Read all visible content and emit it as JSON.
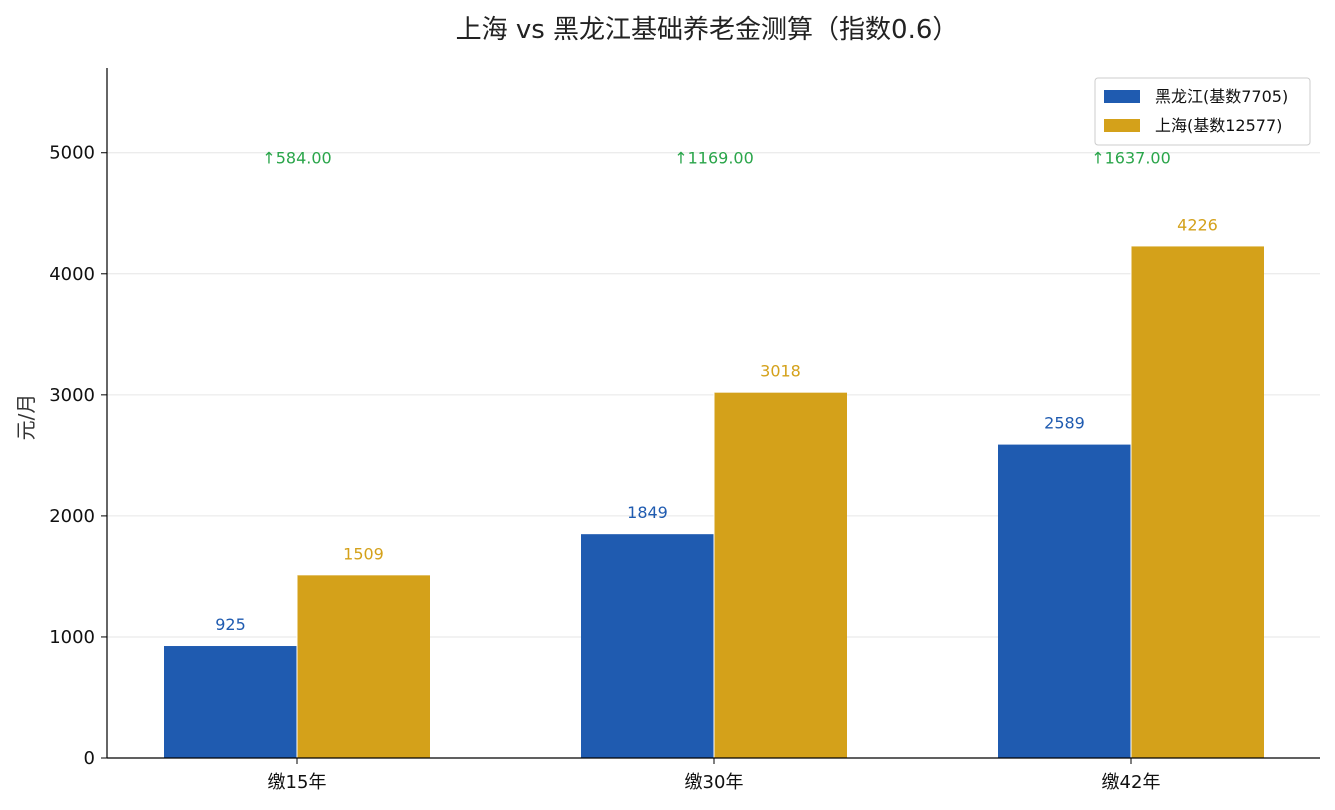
{
  "chart_data": {
    "type": "bar",
    "title": "上海 vs 黑龙江基础养老金测算（指数0.6）",
    "xlabel": "",
    "ylabel": "元/月",
    "ylim": [
      0,
      5700
    ],
    "yticks": [
      0,
      1000,
      2000,
      3000,
      4000,
      5000
    ],
    "categories": [
      "缴15年",
      "缴30年",
      "缴42年"
    ],
    "series": [
      {
        "name": "黑龙江(基数7705)",
        "values": [
          925,
          1849,
          2589
        ],
        "labels": [
          "925",
          "1849",
          "2589"
        ],
        "color": "#1f5bb0"
      },
      {
        "name": "上海(基数12577)",
        "values": [
          1509,
          3018,
          4226
        ],
        "labels": [
          "1509",
          "3018",
          "4226"
        ],
        "color": "#d4a11a"
      }
    ],
    "annotations": [
      "↑584.00",
      "↑1169.00",
      "↑1637.00"
    ],
    "annotation_color": "#2aa54a",
    "grid": "horizontal",
    "legend_position": "top-right"
  }
}
